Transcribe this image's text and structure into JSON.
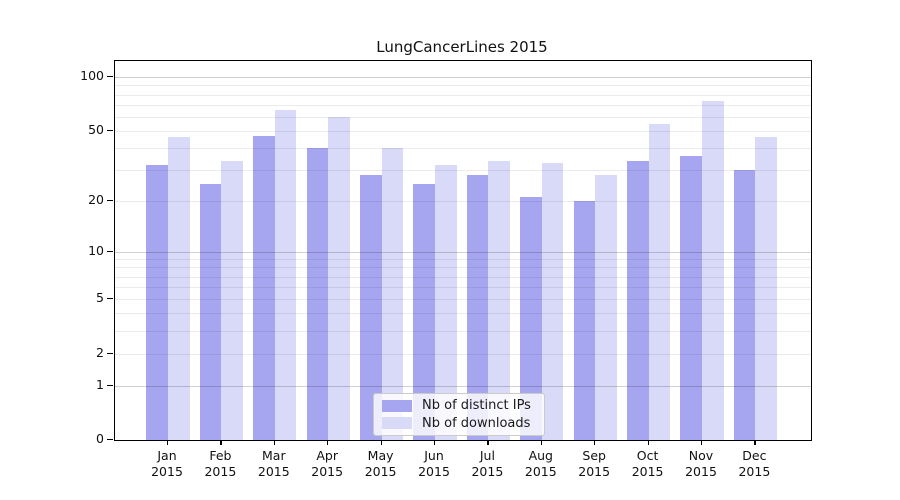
{
  "chart_data": {
    "type": "bar",
    "title": "LungCancerLines 2015",
    "categories": [
      "Jan 2015",
      "Feb 2015",
      "Mar 2015",
      "Apr 2015",
      "May 2015",
      "Jun 2015",
      "Jul 2015",
      "Aug 2015",
      "Sep 2015",
      "Oct 2015",
      "Nov 2015",
      "Dec 2015"
    ],
    "series": [
      {
        "name": "Nb of distinct IPs",
        "color": "#a6a6f0",
        "values": [
          32,
          25,
          47,
          40,
          28,
          25,
          28,
          21,
          20,
          34,
          36,
          30
        ]
      },
      {
        "name": "Nb of downloads",
        "color": "#d9d9f8",
        "values": [
          46,
          34,
          66,
          60,
          40,
          32,
          34,
          33,
          28,
          55,
          74,
          46
        ]
      }
    ],
    "xlabel": "",
    "ylabel": "",
    "yscale": "log1p",
    "ylim": [
      0,
      124
    ],
    "yticks": [
      0,
      1,
      2,
      5,
      10,
      20,
      50,
      100
    ],
    "grid_major": [
      1,
      10,
      100
    ],
    "grid_minor": [
      2,
      3,
      4,
      5,
      6,
      7,
      8,
      9,
      20,
      30,
      40,
      50,
      60,
      70,
      80,
      90
    ],
    "grid_on": true,
    "legend_position": "bottom-center"
  },
  "colors": {
    "axis": "#000000",
    "grid_major": "rgba(0,0,0,0.18)",
    "grid_minor": "rgba(0,0,0,0.08)",
    "background": "#ffffff"
  }
}
